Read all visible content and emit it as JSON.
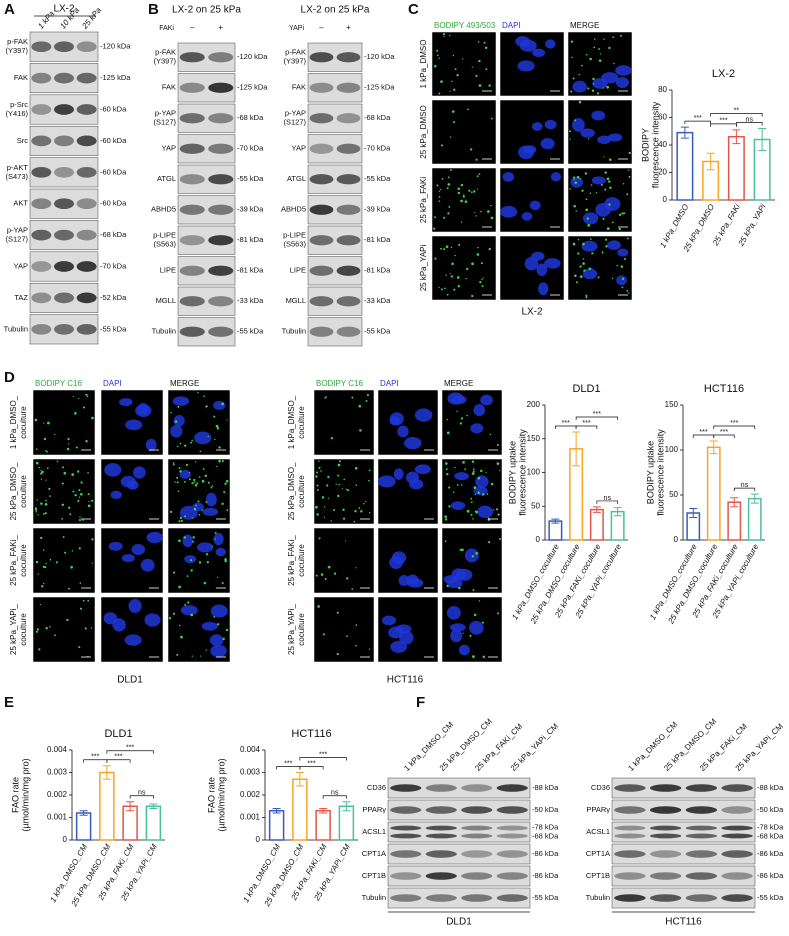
{
  "panels": {
    "A": {
      "label": "A",
      "title": "LX-2",
      "lanes": [
        "1 kPa",
        "10 kPa",
        "25 kPa"
      ],
      "rows": [
        {
          "name": [
            "p-FAK",
            "(Y397)"
          ],
          "size": [
            "-120 kDa"
          ]
        },
        {
          "name": [
            "FAK"
          ],
          "size": [
            "-125 kDa"
          ]
        },
        {
          "name": [
            "p-Src",
            "(Y416)"
          ],
          "size": [
            "-60 kDa"
          ]
        },
        {
          "name": [
            "Src"
          ],
          "size": [
            "-60 kDa"
          ]
        },
        {
          "name": [
            "p-AKT",
            "(S473)"
          ],
          "size": [
            "-60 kDa"
          ]
        },
        {
          "name": [
            "AKT"
          ],
          "size": [
            "-60 kDa"
          ]
        },
        {
          "name": [
            "p-YAP",
            "(S127)"
          ],
          "size": [
            "-68 kDa"
          ]
        },
        {
          "name": [
            "YAP"
          ],
          "size": [
            "-70 kDa"
          ]
        },
        {
          "name": [
            "TAZ"
          ],
          "size": [
            "-52 kDa"
          ]
        },
        {
          "name": [
            "Tubulin"
          ],
          "size": [
            "-55 kDa"
          ]
        }
      ]
    },
    "B": {
      "label": "B",
      "blots": [
        {
          "title": "LX-2 on 25 kPa",
          "treatment": "FAKi",
          "lanes": [
            "–",
            "+"
          ],
          "rows": [
            {
              "name": [
                "p-FAK",
                "(Y397)"
              ],
              "size": [
                "-120 kDa"
              ]
            },
            {
              "name": [
                "FAK"
              ],
              "size": [
                "-125 kDa"
              ]
            },
            {
              "name": [
                "p-YAP",
                "(S127)"
              ],
              "size": [
                "-68 kDa"
              ]
            },
            {
              "name": [
                "YAP"
              ],
              "size": [
                "-70 kDa"
              ]
            },
            {
              "name": [
                "ATGL"
              ],
              "size": [
                "-55 kDa"
              ]
            },
            {
              "name": [
                "ABHD5"
              ],
              "size": [
                "-39 kDa"
              ]
            },
            {
              "name": [
                "p-LIPE",
                "(S563)"
              ],
              "size": [
                "-81 kDa"
              ]
            },
            {
              "name": [
                "LIPE"
              ],
              "size": [
                "-81 kDa"
              ]
            },
            {
              "name": [
                "MGLL"
              ],
              "size": [
                "-33 kDa"
              ]
            },
            {
              "name": [
                "Tubulin"
              ],
              "size": [
                "-55 kDa"
              ]
            }
          ]
        },
        {
          "title": "LX-2 on 25 kPa",
          "treatment": "YAPi",
          "lanes": [
            "–",
            "+"
          ],
          "rows": [
            {
              "name": [
                "p-FAK",
                "(Y397)"
              ],
              "size": [
                "-120 kDa"
              ]
            },
            {
              "name": [
                "FAK"
              ],
              "size": [
                "-125 kDa"
              ]
            },
            {
              "name": [
                "p-YAP",
                "(S127)"
              ],
              "size": [
                "-68 kDa"
              ]
            },
            {
              "name": [
                "YAP"
              ],
              "size": [
                "-70 kDa"
              ]
            },
            {
              "name": [
                "ATGL"
              ],
              "size": [
                "-55 kDa"
              ]
            },
            {
              "name": [
                "ABHD5"
              ],
              "size": [
                "-39 kDa"
              ]
            },
            {
              "name": [
                "p-LIPE",
                "(S563)"
              ],
              "size": [
                "-81 kDa"
              ]
            },
            {
              "name": [
                "LIPE"
              ],
              "size": [
                "-81 kDa"
              ]
            },
            {
              "name": [
                "MGLL"
              ],
              "size": [
                "-33 kDa"
              ]
            },
            {
              "name": [
                "Tubulin"
              ],
              "size": [
                "-55 kDa"
              ]
            }
          ]
        }
      ]
    },
    "C": {
      "label": "C",
      "channels": [
        "BODIPY 493/503",
        "DAPI",
        "MERGE"
      ],
      "rows": [
        [
          "1 kPa_DMSO"
        ],
        [
          "25 kPa_DMSO"
        ],
        [
          "25 kPa_FAKi"
        ],
        [
          "25 kPa_YAPi"
        ]
      ],
      "footer": "LX-2"
    },
    "D": {
      "label": "D",
      "grids": [
        {
          "channels": [
            "BODIPY C16",
            "DAPI",
            "MERGE"
          ],
          "rows": [
            [
              "1 kPa_DMSO_",
              "coculture"
            ],
            [
              "25 kPa_DMSO_",
              "coculture"
            ],
            [
              "25 kPa_FAKi_",
              "coculture"
            ],
            [
              "25 kPa_YAPi_",
              "coculture"
            ]
          ],
          "footer": "DLD1"
        },
        {
          "channels": [
            "BODIPY C16",
            "DAPI",
            "MERGE"
          ],
          "rows": [
            [
              "1 kPa_DMSO_",
              "coculture"
            ],
            [
              "25 kPa_DMSO_",
              "coculture"
            ],
            [
              "25 kPa_FAKi_",
              "coculture"
            ],
            [
              "25 kPa_YAPi_",
              "coculture"
            ]
          ],
          "footer": "HCT116"
        }
      ]
    },
    "E": {
      "label": "E"
    },
    "F": {
      "label": "F",
      "blots": [
        {
          "lanes": [
            "1 kPa_DMSO_CM",
            "25 kPa_DMSO_CM",
            "25 kPa_FAKi_CM",
            "25 kPa_YAPi_CM"
          ],
          "rows": [
            {
              "name": [
                "CD36"
              ],
              "size": [
                "-88 kDa"
              ]
            },
            {
              "name": [
                "PPARγ"
              ],
              "size": [
                "-50 kDa"
              ]
            },
            {
              "name": [
                "ACSL1"
              ],
              "size": [
                "-78 kDa",
                "-68 kDa"
              ]
            },
            {
              "name": [
                "CPT1A"
              ],
              "size": [
                "-86 kDa"
              ]
            },
            {
              "name": [
                "CPT1B"
              ],
              "size": [
                "-86 kDa"
              ]
            },
            {
              "name": [
                "Tubulin"
              ],
              "size": [
                "-55 kDa"
              ]
            }
          ],
          "footer": "DLD1"
        },
        {
          "lanes": [
            "1 kPa_DMSO_CM",
            "25 kPa_DMSO_CM",
            "25 kPa_FAKi_CM",
            "25 kPa_YAPi_CM"
          ],
          "rows": [
            {
              "name": [
                "CD36"
              ],
              "size": [
                "-88 kDa"
              ]
            },
            {
              "name": [
                "PPARγ"
              ],
              "size": [
                "-50 kDa"
              ]
            },
            {
              "name": [
                "ACSL1"
              ],
              "size": [
                "-78 kDa",
                "-68 kDa"
              ]
            },
            {
              "name": [
                "CPT1A"
              ],
              "size": [
                "-86 kDa"
              ]
            },
            {
              "name": [
                "CPT1B"
              ],
              "size": [
                "-86 kDa"
              ]
            },
            {
              "name": [
                "Tubulin"
              ],
              "size": [
                "-55 kDa"
              ]
            }
          ],
          "footer": "HCT116"
        }
      ]
    }
  },
  "chart_data": [
    {
      "type": "bar",
      "title": "LX-2",
      "ylabel": [
        "BODIPY",
        "fluorescence intensity"
      ],
      "categories": [
        "1 kPa_DMSO",
        "25 kPa_DMSO",
        "25 kPa_FAKi",
        "25 kPa_YAPi"
      ],
      "values": [
        49,
        28,
        46,
        44
      ],
      "errors": [
        4,
        6,
        5,
        8
      ],
      "colors": [
        "#3a5bb8",
        "#f5a623",
        "#e0564a",
        "#4dbf9c"
      ],
      "ylim": [
        0,
        80
      ],
      "yticks": [
        0,
        20,
        40,
        60,
        80
      ],
      "significance": [
        {
          "from": 0,
          "to": 1,
          "label": "***"
        },
        {
          "from": 1,
          "to": 2,
          "label": "***"
        },
        {
          "from": 2,
          "to": 3,
          "label": "ns"
        },
        {
          "from": 1,
          "to": 3,
          "label": "**"
        }
      ]
    },
    {
      "type": "bar",
      "title": "DLD1",
      "ylabel": [
        "BODIPY uptake",
        "fluorescence intensity"
      ],
      "categories": [
        "1 kPa_DMSO_coculture",
        "25 kPa_DMSO_coculture",
        "25 kPa_FAKi_coculture",
        "25 kPa_YAPi_coculture"
      ],
      "values": [
        28,
        135,
        45,
        42
      ],
      "errors": [
        3,
        25,
        4,
        6
      ],
      "colors": [
        "#3a5bb8",
        "#f5a623",
        "#e0564a",
        "#4dbf9c"
      ],
      "ylim": [
        0,
        200
      ],
      "yticks": [
        0,
        50,
        100,
        150,
        200
      ],
      "significance": [
        {
          "from": 0,
          "to": 1,
          "label": "***"
        },
        {
          "from": 1,
          "to": 2,
          "label": "***"
        },
        {
          "from": 2,
          "to": 3,
          "label": "ns"
        },
        {
          "from": 1,
          "to": 3,
          "label": "***"
        }
      ]
    },
    {
      "type": "bar",
      "title": "HCT116",
      "ylabel": [
        "BODIPY uptake",
        "fluorescence intensity"
      ],
      "categories": [
        "1 kPa_DMSO_coculture",
        "25 kPa_DMSO_coculture",
        "25 kPa_FAKi_coculture",
        "25 kPa_YAPi_coculture"
      ],
      "values": [
        30,
        103,
        42,
        46
      ],
      "errors": [
        5,
        7,
        5,
        5
      ],
      "colors": [
        "#3a5bb8",
        "#f5a623",
        "#e0564a",
        "#4dbf9c"
      ],
      "ylim": [
        0,
        150
      ],
      "yticks": [
        0,
        50,
        100,
        150
      ],
      "significance": [
        {
          "from": 0,
          "to": 1,
          "label": "***"
        },
        {
          "from": 1,
          "to": 2,
          "label": "***"
        },
        {
          "from": 2,
          "to": 3,
          "label": "ns"
        },
        {
          "from": 1,
          "to": 3,
          "label": "***"
        }
      ]
    },
    {
      "type": "bar",
      "title": "DLD1",
      "ylabel": [
        "FAO rate",
        "(µmol/min/mg pro)"
      ],
      "categories": [
        "1 kPa_DMSO_CM",
        "25 kPa_DMSO_CM",
        "25 kPa_FAKi_CM",
        "25 kPa_YAPi_CM"
      ],
      "values": [
        0.0012,
        0.003,
        0.0015,
        0.0015
      ],
      "errors": [
        0.0001,
        0.0003,
        0.0002,
        0.0001
      ],
      "colors": [
        "#3a5bb8",
        "#f5a623",
        "#e0564a",
        "#4dbf9c"
      ],
      "ylim": [
        0,
        0.004
      ],
      "yticks": [
        0,
        0.001,
        0.002,
        0.003,
        0.004
      ],
      "significance": [
        {
          "from": 0,
          "to": 1,
          "label": "***"
        },
        {
          "from": 1,
          "to": 2,
          "label": "***"
        },
        {
          "from": 2,
          "to": 3,
          "label": "ns"
        },
        {
          "from": 1,
          "to": 3,
          "label": "***"
        }
      ]
    },
    {
      "type": "bar",
      "title": "HCT116",
      "ylabel": [
        "FAO rate",
        "(µmol/min/mg pro)"
      ],
      "categories": [
        "1 kPa_DMSO_CM",
        "25 kPa_DMSO_CM",
        "25 kPa_FAKi_CM",
        "25 kPa_YAPi_CM"
      ],
      "values": [
        0.0013,
        0.0027,
        0.0013,
        0.0015
      ],
      "errors": [
        0.0001,
        0.0003,
        0.0001,
        0.0002
      ],
      "colors": [
        "#3a5bb8",
        "#f5a623",
        "#e0564a",
        "#4dbf9c"
      ],
      "ylim": [
        0,
        0.004
      ],
      "yticks": [
        0,
        0.001,
        0.002,
        0.003,
        0.004
      ],
      "significance": [
        {
          "from": 0,
          "to": 1,
          "label": "***"
        },
        {
          "from": 1,
          "to": 2,
          "label": "***"
        },
        {
          "from": 2,
          "to": 3,
          "label": "ns"
        },
        {
          "from": 1,
          "to": 3,
          "label": "***"
        }
      ]
    }
  ]
}
